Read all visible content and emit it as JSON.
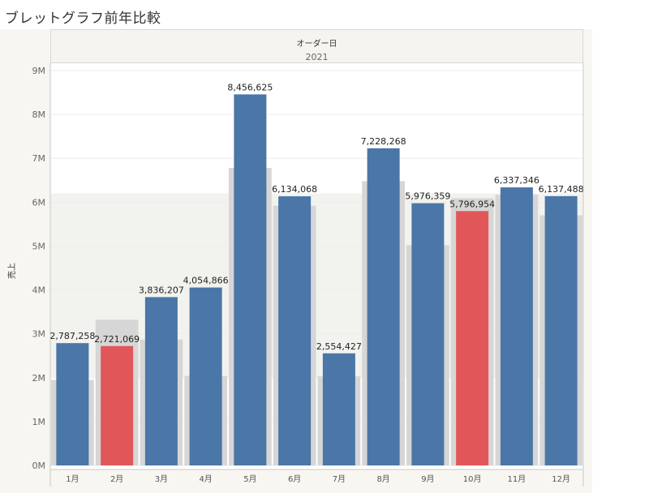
{
  "title": "ブレットグラフ前年比較",
  "header": {
    "field": "オーダー日",
    "year": "2021"
  },
  "colors": {
    "bar": "#4a76a8",
    "highlight": "#e15759",
    "reference": "#d6d6d6",
    "average_band": "#f2f2ee"
  },
  "chart_data": {
    "type": "bar",
    "title": "ブレットグラフ前年比較",
    "ylabel": "売上",
    "xlabel": "",
    "ylim": [
      0,
      9000000
    ],
    "yticks": [
      {
        "value": 0,
        "label": "0M"
      },
      {
        "value": 1000000,
        "label": "1M"
      },
      {
        "value": 2000000,
        "label": "2M"
      },
      {
        "value": 3000000,
        "label": "3M"
      },
      {
        "value": 4000000,
        "label": "4M"
      },
      {
        "value": 5000000,
        "label": "5M"
      },
      {
        "value": 6000000,
        "label": "6M"
      },
      {
        "value": 7000000,
        "label": "7M"
      },
      {
        "value": 8000000,
        "label": "8M"
      },
      {
        "value": 9000000,
        "label": "9M"
      }
    ],
    "categories": [
      "1月",
      "2月",
      "3月",
      "4月",
      "5月",
      "6月",
      "7月",
      "8月",
      "9月",
      "10月",
      "11月",
      "12月"
    ],
    "values": [
      2787258,
      2721069,
      3836207,
      4054866,
      8456625,
      6134068,
      2554427,
      7228268,
      5976359,
      5796954,
      6337346,
      6137488
    ],
    "value_labels": [
      "2,787,258",
      "2,721,069",
      "3,836,207",
      "4,054,866",
      "8,456,625",
      "6,134,068",
      "2,554,427",
      "7,228,268",
      "5,976,359",
      "5,796,954",
      "6,337,346",
      "6,137,488"
    ],
    "prior_year": [
      1950000,
      3320000,
      2870000,
      2040000,
      6780000,
      5920000,
      2030000,
      6480000,
      5020000,
      6090000,
      6170000,
      5700000
    ],
    "highlighted": [
      false,
      true,
      false,
      false,
      false,
      false,
      false,
      false,
      false,
      true,
      false,
      false
    ],
    "reference_band": {
      "from": 2000000,
      "to": 6200000
    },
    "grid": true,
    "legend": "none"
  }
}
